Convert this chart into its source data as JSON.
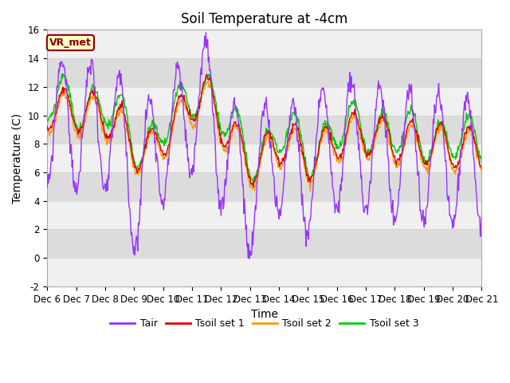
{
  "title": "Soil Temperature at -4cm",
  "xlabel": "Time",
  "ylabel": "Temperature (C)",
  "ylim": [
    -2,
    16
  ],
  "xlim": [
    0,
    360
  ],
  "x_tick_labels": [
    "Dec 6",
    "Dec 7",
    "Dec 8",
    "Dec 9",
    "Dec 10",
    "Dec 11",
    "Dec 12",
    "Dec 13",
    "Dec 14",
    "Dec 15",
    "Dec 16",
    "Dec 17",
    "Dec 18",
    "Dec 19",
    "Dec 20",
    "Dec 21"
  ],
  "x_tick_positions": [
    0,
    24,
    48,
    72,
    96,
    120,
    144,
    168,
    192,
    216,
    240,
    264,
    288,
    312,
    336,
    360
  ],
  "label_box_text": "VR_met",
  "legend_labels": [
    "Tair",
    "Tsoil set 1",
    "Tsoil set 2",
    "Tsoil set 3"
  ],
  "colors": {
    "Tair": "#9933ff",
    "Tsoil1": "#dd0000",
    "Tsoil2": "#ff9900",
    "Tsoil3": "#00cc00"
  },
  "background_color": "#ffffff",
  "plot_bg_color": "#e8e8e8",
  "band_light": "#f0f0f0",
  "band_dark": "#dcdcdc",
  "title_fontsize": 12,
  "axis_fontsize": 10,
  "tick_fontsize": 8.5
}
